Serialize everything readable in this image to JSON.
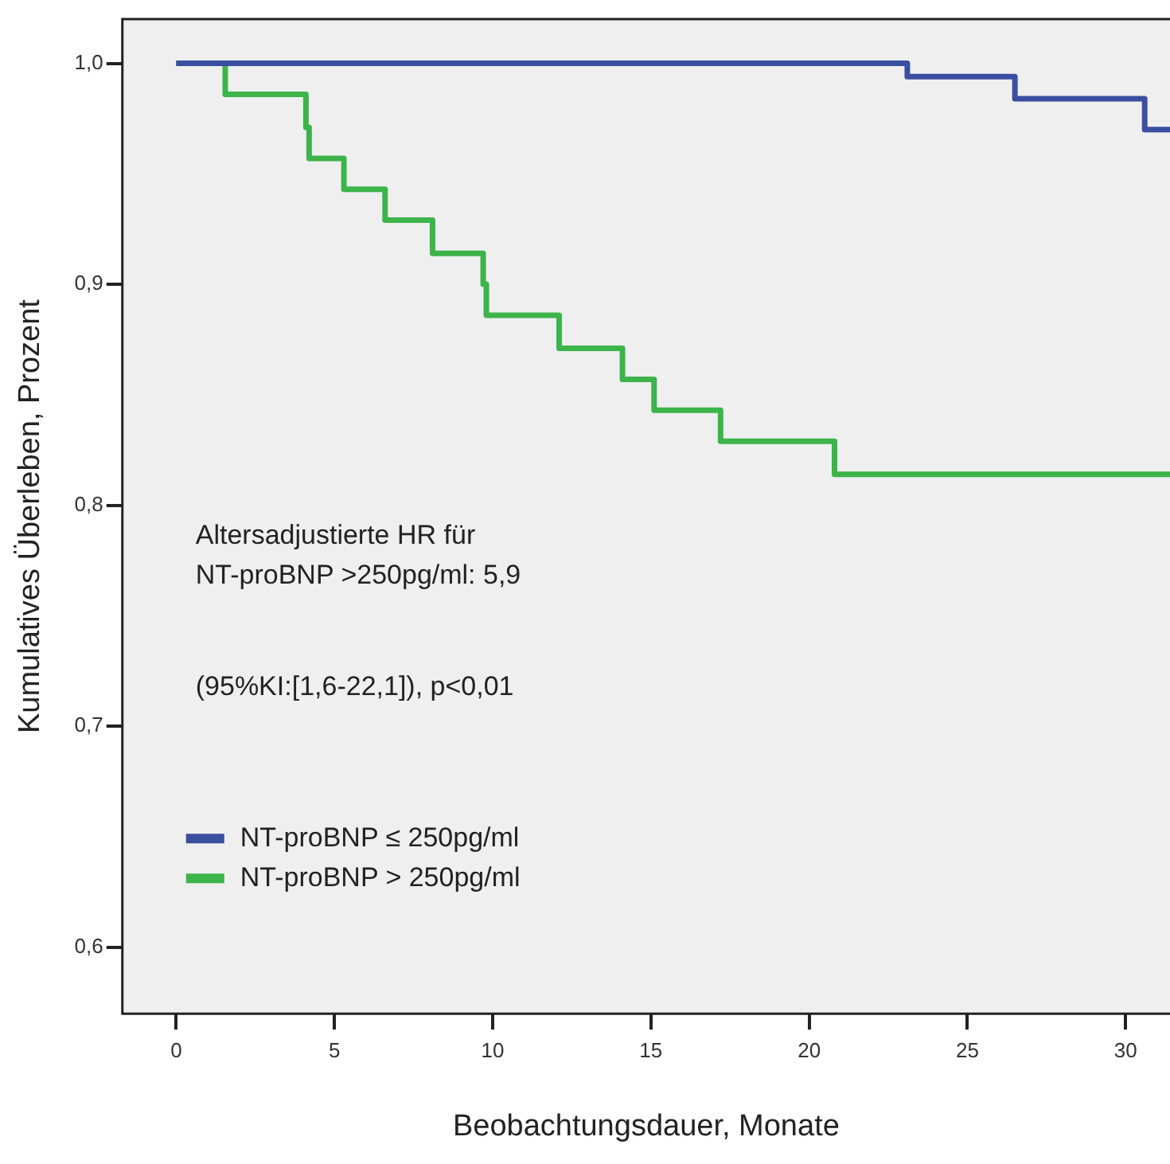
{
  "chart_data": {
    "type": "step",
    "xlabel": "Beobachtungsdauer, Monate",
    "ylabel": "Kumulatives Überleben, Prozent",
    "annotations": [
      "Altersadjustierte HR für",
      "NT-proBNP >250pg/ml: 5,9",
      "(95%KI:[1,6-22,1]), p<0,01"
    ],
    "series": [
      {
        "name": "NT-proBNP ≤ 250pg/ml",
        "color": "#3a4fa0",
        "x": [
          0,
          23.1,
          26.5,
          30.6,
          31.4
        ],
        "values": [
          1.0,
          0.994,
          0.984,
          0.97,
          0.97
        ]
      },
      {
        "name": "NT-proBNP > 250pg/ml",
        "color": "#3cb44a",
        "x": [
          0,
          1.55,
          4.1,
          4.2,
          5.3,
          6.6,
          8.1,
          9.7,
          9.8,
          12.1,
          14.1,
          15.1,
          17.2,
          20.8,
          22.3,
          31.4
        ],
        "values": [
          1.0,
          0.986,
          0.971,
          0.957,
          0.943,
          0.929,
          0.914,
          0.9,
          0.886,
          0.871,
          0.857,
          0.843,
          0.829,
          0.814,
          0.814,
          0.814
        ]
      }
    ],
    "xlim": [
      -1.7,
      31.4
    ],
    "xticks": [
      0,
      5,
      10,
      15,
      20,
      25,
      30
    ],
    "ylim": [
      0.57,
      1.02
    ],
    "yticks": [
      {
        "value": 0.6,
        "label": "0,6"
      },
      {
        "value": 0.7,
        "label": "0,7"
      },
      {
        "value": 0.8,
        "label": "0,8"
      },
      {
        "value": 0.9,
        "label": "0,9"
      },
      {
        "value": 1.0,
        "label": "1,0"
      }
    ],
    "legend": "bottom left"
  }
}
